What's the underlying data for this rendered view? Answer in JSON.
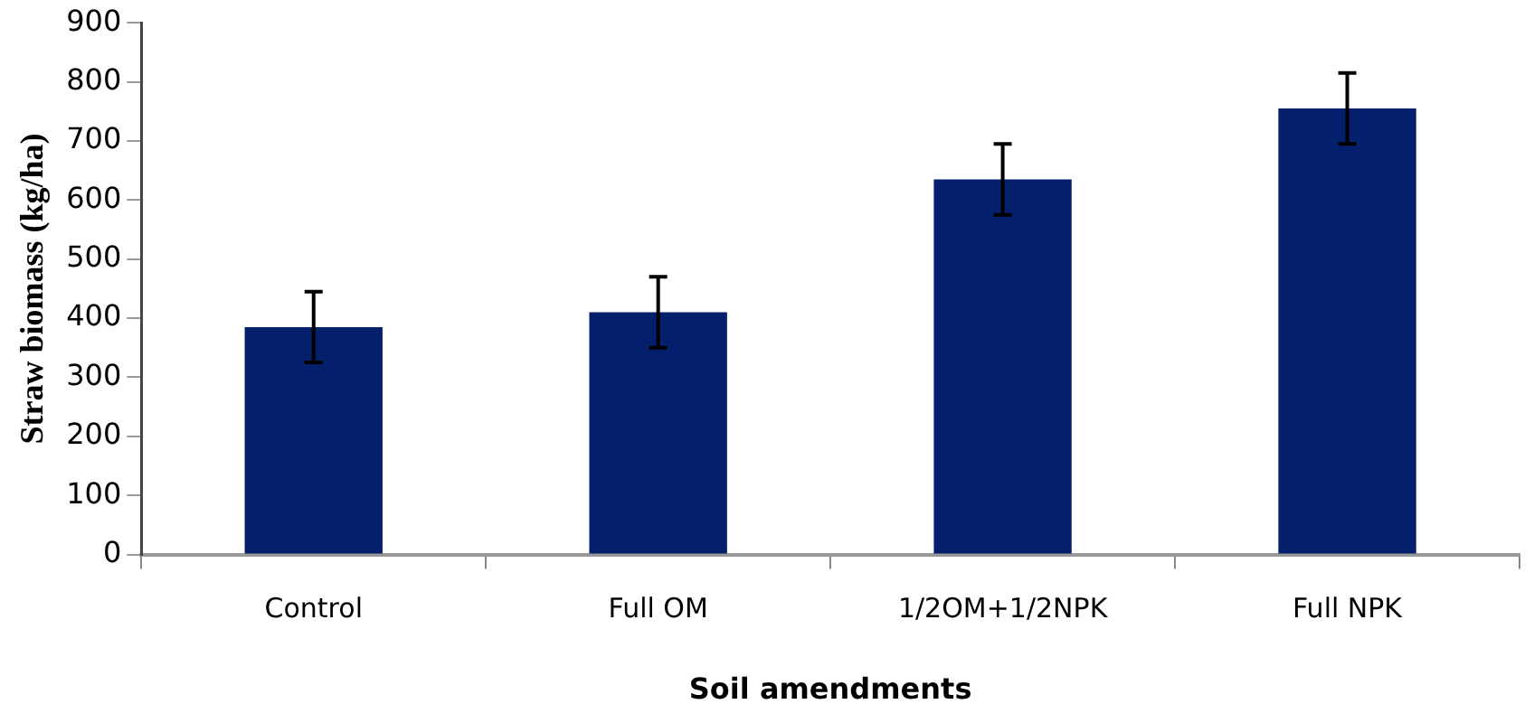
{
  "chart_data": {
    "type": "bar",
    "xlabel": "Soil amendments",
    "ylabel": "Straw biomass (kg/ha)",
    "categories": [
      "Control",
      "Full OM",
      "1/2OM+1/2NPK",
      "Full NPK"
    ],
    "values": [
      385,
      410,
      635,
      755
    ],
    "errors": [
      60,
      60,
      60,
      60
    ],
    "color": "#041f6b",
    "ylim": [
      0,
      900
    ],
    "yticks": [
      0,
      100,
      200,
      300,
      400,
      500,
      600,
      700,
      800,
      900
    ],
    "grid": false,
    "legend": false
  }
}
